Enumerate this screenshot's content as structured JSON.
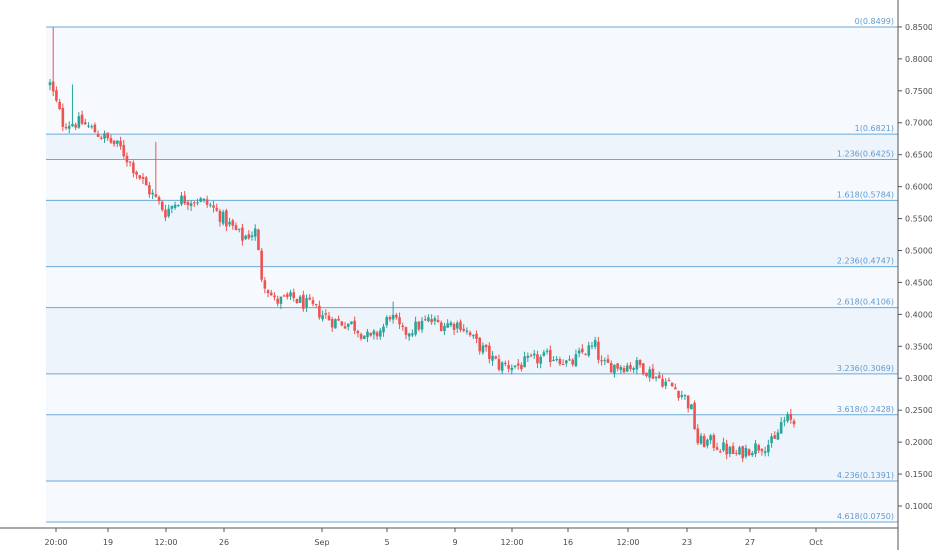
{
  "chart_data": {
    "type": "candlestick",
    "title": "",
    "xlabel": "",
    "ylabel": "",
    "ylim": [
      0.05,
      0.88
    ],
    "grid": false,
    "legend": "none",
    "colors": {
      "up": "#26a69a",
      "down": "#ef5350",
      "fib_line": "#6aa9d8",
      "fib_band": "#eef4fc",
      "fib_label": "#5f9bd0",
      "axis_text": "#4a4a4a",
      "axis_line": "#555555"
    },
    "y_ticks": [
      "0.8500",
      "0.8000",
      "0.7500",
      "0.7000",
      "0.6500",
      "0.6000",
      "0.5500",
      "0.5000",
      "0.4500",
      "0.4000",
      "0.3500",
      "0.3000",
      "0.2500",
      "0.2000",
      "0.1500",
      "0.1000"
    ],
    "x_ticks": [
      "20:00",
      "19",
      "12:00",
      "26",
      "Sep",
      "5",
      "9",
      "12:00",
      "16",
      "12:00",
      "23",
      "27",
      "Oct"
    ],
    "fib_levels": [
      {
        "label": "0(0.8499)",
        "value": 0.8499
      },
      {
        "label": "1(0.6821)",
        "value": 0.6821
      },
      {
        "label": "1.236(0.6425)",
        "value": 0.6425
      },
      {
        "label": "1.618(0.5784)",
        "value": 0.5784
      },
      {
        "label": "2.236(0.4747)",
        "value": 0.4747
      },
      {
        "label": "2.618(0.4106)",
        "value": 0.4106
      },
      {
        "label": "3.236(0.3069)",
        "value": 0.3069
      },
      {
        "label": "3.618(0.2428)",
        "value": 0.2428
      },
      {
        "label": "4.236(0.1391)",
        "value": 0.1391
      },
      {
        "label": "4.618(0.0750)",
        "value": 0.075
      }
    ],
    "price_anchors": [
      [
        0,
        0.76
      ],
      [
        4,
        0.7
      ],
      [
        10,
        0.7
      ],
      [
        16,
        0.68
      ],
      [
        22,
        0.66
      ],
      [
        26,
        0.63
      ],
      [
        30,
        0.6
      ],
      [
        36,
        0.56
      ],
      [
        40,
        0.58
      ],
      [
        46,
        0.58
      ],
      [
        50,
        0.57
      ],
      [
        56,
        0.54
      ],
      [
        60,
        0.52
      ],
      [
        64,
        0.53
      ],
      [
        66,
        0.46
      ],
      [
        70,
        0.42
      ],
      [
        76,
        0.425
      ],
      [
        82,
        0.41
      ],
      [
        88,
        0.39
      ],
      [
        94,
        0.385
      ],
      [
        100,
        0.36
      ],
      [
        104,
        0.38
      ],
      [
        106,
        0.4
      ],
      [
        110,
        0.37
      ],
      [
        114,
        0.38
      ],
      [
        118,
        0.39
      ],
      [
        122,
        0.385
      ],
      [
        128,
        0.385
      ],
      [
        132,
        0.36
      ],
      [
        136,
        0.34
      ],
      [
        140,
        0.32
      ],
      [
        146,
        0.32
      ],
      [
        152,
        0.33
      ],
      [
        158,
        0.335
      ],
      [
        162,
        0.32
      ],
      [
        166,
        0.34
      ],
      [
        170,
        0.35
      ],
      [
        172,
        0.32
      ],
      [
        178,
        0.32
      ],
      [
        184,
        0.32
      ],
      [
        190,
        0.3
      ],
      [
        196,
        0.28
      ],
      [
        198,
        0.27
      ],
      [
        200,
        0.25
      ],
      [
        202,
        0.2
      ],
      [
        206,
        0.2
      ],
      [
        210,
        0.19
      ],
      [
        214,
        0.18
      ],
      [
        218,
        0.19
      ],
      [
        222,
        0.195
      ],
      [
        226,
        0.2
      ],
      [
        228,
        0.23
      ],
      [
        230,
        0.235
      ],
      [
        232,
        0.23
      ]
    ],
    "candle_count": 233,
    "spikes": [
      {
        "index": 1,
        "high": 0.85
      },
      {
        "index": 7,
        "high": 0.76
      },
      {
        "index": 33,
        "high": 0.67
      },
      {
        "index": 107,
        "high": 0.42
      }
    ]
  }
}
